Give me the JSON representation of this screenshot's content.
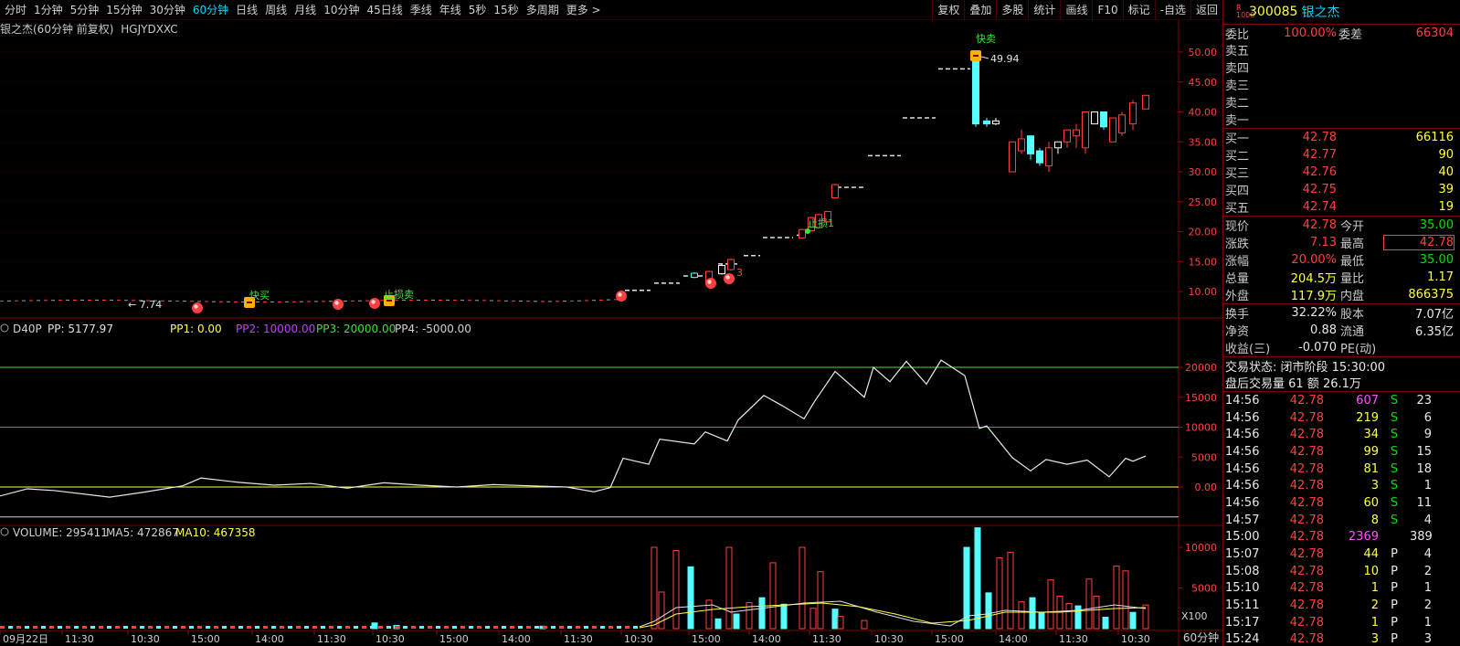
{
  "toolbar": {
    "periods": [
      "分时",
      "1分钟",
      "5分钟",
      "15分钟",
      "30分钟",
      "60分钟",
      "日线",
      "周线",
      "月线",
      "10分钟",
      "45日线",
      "季线",
      "年线",
      "5秒",
      "15秒",
      "多周期",
      "更多 >"
    ],
    "active_period": "60分钟",
    "tools": [
      "复权",
      "叠加",
      "多股",
      "统计",
      "画线",
      "F10",
      "标记",
      "-自选",
      "返回"
    ]
  },
  "chart": {
    "title": "银之杰(60分钟 前复权)",
    "subtitle": "HGJYDXXC",
    "price_axis": [
      "50.00",
      "45.00",
      "40.00",
      "35.00",
      "30.00",
      "25.00",
      "20.00",
      "15.00",
      "10.00"
    ],
    "price_high_label": "49.94",
    "price_low_label": "7.74",
    "markers": {
      "sell_top": "快卖",
      "buy1": "快买",
      "stop1": "止损卖",
      "kb1": "止损1",
      "kb3": "3"
    }
  },
  "indicator": {
    "name": "D40P",
    "pp": "PP: 5177.97",
    "pp1": "PP1: 0.00",
    "pp2": "PP2: 10000.00",
    "pp3": "PP3: 20000.00",
    "pp4": "PP4: -5000.00",
    "axis": [
      "20000",
      "15000",
      "10000",
      "5000",
      "0.00"
    ],
    "colors": {
      "pp1": "#ffff40",
      "pp2": "#c040ff",
      "pp3": "#40e040",
      "pp4": "#d0d0d0"
    }
  },
  "volume": {
    "label": "VOLUME: 295411",
    "ma5": "MA5: 472867",
    "ma10": "MA10: 467358",
    "axis": [
      "10000",
      "5000"
    ],
    "unit": "X100"
  },
  "time_axis": [
    "09月22日",
    "11:30",
    "10:30",
    "15:00",
    "14:00",
    "11:30",
    "10:30",
    "15:00",
    "14:00",
    "11:30",
    "10:30",
    "15:00",
    "14:00",
    "11:30",
    "10:30",
    "15:00",
    "14:00",
    "11:30",
    "10:30"
  ],
  "period_label": "60分钟",
  "quote": {
    "code": "300085",
    "name": "银之杰",
    "wb_label": "委比",
    "wb": "100.00%",
    "wc_label": "委差",
    "wc": "66304",
    "sell": [
      {
        "label": "卖五",
        "price": "",
        "vol": ""
      },
      {
        "label": "卖四",
        "price": "",
        "vol": ""
      },
      {
        "label": "卖三",
        "price": "",
        "vol": ""
      },
      {
        "label": "卖二",
        "price": "",
        "vol": ""
      },
      {
        "label": "卖一",
        "price": "",
        "vol": ""
      }
    ],
    "buy": [
      {
        "label": "买一",
        "price": "42.78",
        "vol": "66116"
      },
      {
        "label": "买二",
        "price": "42.77",
        "vol": "90"
      },
      {
        "label": "买三",
        "price": "42.76",
        "vol": "40"
      },
      {
        "label": "买四",
        "price": "42.75",
        "vol": "39"
      },
      {
        "label": "买五",
        "price": "42.74",
        "vol": "19"
      }
    ],
    "stats": [
      {
        "l1": "现价",
        "v1": "42.78",
        "l2": "今开",
        "v2": "35.00"
      },
      {
        "l1": "涨跌",
        "v1": "7.13",
        "l2": "最高",
        "v2": "42.78"
      },
      {
        "l1": "涨幅",
        "v1": "20.00%",
        "l2": "最低",
        "v2": "35.00"
      },
      {
        "l1": "总量",
        "v1": "204.5万",
        "l2": "量比",
        "v2": "1.17"
      },
      {
        "l1": "外盘",
        "v1": "117.9万",
        "l2": "内盘",
        "v2": "866375"
      }
    ],
    "stats2": [
      {
        "l1": "换手",
        "v1": "32.22%",
        "l2": "股本",
        "v2": "7.07亿"
      },
      {
        "l1": "净资",
        "v1": "0.88",
        "l2": "流通",
        "v2": "6.35亿"
      },
      {
        "l1": "收益(三)",
        "v1": "-0.070",
        "l2": "PE(动)",
        "v2": ""
      }
    ],
    "trade_status": "交易状态: 闭市阶段 15:30:00",
    "after_hours": "盘后交易量 61 额 26.1万",
    "ticks": [
      {
        "t": "14:56",
        "p": "42.78",
        "v": "607",
        "s": "S",
        "n": "23",
        "vc": "mag"
      },
      {
        "t": "14:56",
        "p": "42.78",
        "v": "219",
        "s": "S",
        "n": "6",
        "vc": "yel"
      },
      {
        "t": "14:56",
        "p": "42.78",
        "v": "34",
        "s": "S",
        "n": "9",
        "vc": "yel"
      },
      {
        "t": "14:56",
        "p": "42.78",
        "v": "99",
        "s": "S",
        "n": "15",
        "vc": "yel"
      },
      {
        "t": "14:56",
        "p": "42.78",
        "v": "81",
        "s": "S",
        "n": "18",
        "vc": "yel"
      },
      {
        "t": "14:56",
        "p": "42.78",
        "v": "3",
        "s": "S",
        "n": "1",
        "vc": "yel"
      },
      {
        "t": "14:56",
        "p": "42.78",
        "v": "60",
        "s": "S",
        "n": "11",
        "vc": "yel"
      },
      {
        "t": "14:57",
        "p": "42.78",
        "v": "8",
        "s": "S",
        "n": "4",
        "vc": "yel"
      },
      {
        "t": "15:00",
        "p": "42.78",
        "v": "2369",
        "s": "",
        "n": "389",
        "vc": "mag"
      },
      {
        "t": "15:07",
        "p": "42.78",
        "v": "44",
        "s": "P",
        "n": "4",
        "vc": "yel"
      },
      {
        "t": "15:08",
        "p": "42.78",
        "v": "10",
        "s": "P",
        "n": "2",
        "vc": "yel"
      },
      {
        "t": "15:10",
        "p": "42.78",
        "v": "1",
        "s": "P",
        "n": "1",
        "vc": "yel"
      },
      {
        "t": "15:11",
        "p": "42.78",
        "v": "2",
        "s": "P",
        "n": "2",
        "vc": "yel"
      },
      {
        "t": "15:17",
        "p": "42.78",
        "v": "1",
        "s": "P",
        "n": "1",
        "vc": "yel"
      },
      {
        "t": "15:24",
        "p": "42.78",
        "v": "3",
        "s": "P",
        "n": "3",
        "vc": "yel"
      }
    ]
  }
}
